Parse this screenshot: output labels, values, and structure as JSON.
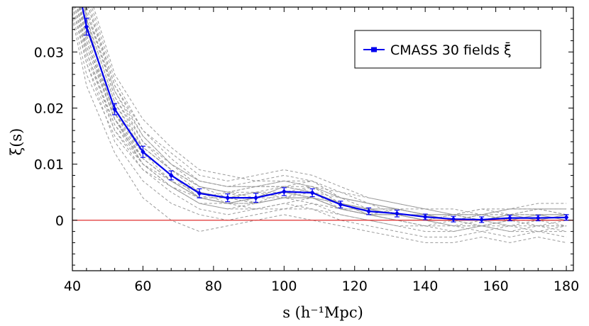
{
  "chart_data": {
    "type": "line",
    "xlabel": "s (h⁻¹Mpc)",
    "ylabel": "ξ(s)",
    "xlim": [
      40,
      182
    ],
    "ylim": [
      -0.009,
      0.038
    ],
    "x_ticks": [
      40,
      60,
      80,
      100,
      120,
      140,
      160,
      180
    ],
    "y_ticks": [
      0,
      0.01,
      0.02,
      0.03
    ],
    "y_tick_labels": [
      "0",
      "0.01",
      "0.02",
      "0.03"
    ],
    "legend_position": "top-right",
    "reference_line": {
      "y": 0,
      "color": "#e03030"
    },
    "mean_series": {
      "name": "CMASS 30 fields ξ̄",
      "color": "#0000ee",
      "x": [
        40,
        44,
        52,
        60,
        68,
        76,
        84,
        92,
        100,
        108,
        116,
        124,
        132,
        140,
        148,
        156,
        164,
        172,
        180
      ],
      "y": [
        0.0465,
        0.0345,
        0.0198,
        0.0122,
        0.008,
        0.0048,
        0.004,
        0.004,
        0.0051,
        0.0049,
        0.0028,
        0.0016,
        0.0012,
        0.0006,
        0.0002,
        0.0001,
        0.0004,
        0.0004,
        0.0005
      ],
      "err": [
        0,
        0.0015,
        0.001,
        0.001,
        0.0008,
        0.0008,
        0.0007,
        0.0008,
        0.0007,
        0.0007,
        0.0006,
        0.0006,
        0.0006,
        0.0005,
        0.0005,
        0.0005,
        0.0005,
        0.0005,
        0.0005
      ]
    },
    "field_series_color": "#9a9a9a",
    "field_series_x": [
      40,
      44,
      52,
      60,
      68,
      76,
      84,
      92,
      100,
      108,
      116,
      124,
      132,
      140,
      148,
      156,
      164,
      172,
      180
    ],
    "field_series": [
      {
        "y": [
          0.05,
          0.038,
          0.022,
          0.014,
          0.01,
          0.006,
          0.005,
          0.004,
          0.006,
          0.005,
          0.003,
          0.002,
          0.001,
          0.0,
          0.0,
          -0.001,
          0.0,
          0.001,
          0.001
        ]
      },
      {
        "y": [
          0.044,
          0.032,
          0.018,
          0.01,
          0.007,
          0.004,
          0.003,
          0.003,
          0.004,
          0.006,
          0.003,
          0.001,
          0.002,
          0.001,
          0.0,
          0.001,
          0.0,
          0.0,
          0.0
        ]
      },
      {
        "y": [
          0.042,
          0.03,
          0.016,
          0.009,
          0.006,
          0.003,
          0.002,
          0.002,
          0.002,
          0.003,
          0.001,
          0.0,
          -0.001,
          -0.001,
          -0.002,
          -0.001,
          -0.002,
          -0.001,
          -0.002
        ]
      },
      {
        "y": [
          0.055,
          0.04,
          0.024,
          0.016,
          0.012,
          0.008,
          0.007,
          0.008,
          0.009,
          0.008,
          0.006,
          0.004,
          0.003,
          0.002,
          0.001,
          0.002,
          0.002,
          0.003,
          0.003
        ]
      },
      {
        "y": [
          0.038,
          0.028,
          0.014,
          0.007,
          0.003,
          0.001,
          0.0,
          0.001,
          0.002,
          0.002,
          0.0,
          -0.001,
          -0.002,
          -0.003,
          -0.003,
          -0.002,
          -0.003,
          -0.002,
          -0.003
        ]
      },
      {
        "y": [
          0.048,
          0.036,
          0.021,
          0.013,
          0.009,
          0.005,
          0.004,
          0.005,
          0.005,
          0.004,
          0.002,
          0.001,
          0.0,
          0.0,
          0.001,
          0.0,
          0.001,
          0.001,
          0.0
        ]
      },
      {
        "y": [
          0.046,
          0.034,
          0.02,
          0.012,
          0.008,
          0.005,
          0.004,
          0.004,
          0.005,
          0.005,
          0.003,
          0.002,
          0.001,
          0.001,
          0.0,
          0.0,
          0.001,
          0.0,
          0.001
        ]
      },
      {
        "y": [
          0.052,
          0.036,
          0.018,
          0.01,
          0.006,
          0.004,
          0.003,
          0.004,
          0.006,
          0.007,
          0.004,
          0.002,
          0.001,
          0.0,
          -0.001,
          -0.001,
          0.0,
          -0.001,
          -0.001
        ]
      },
      {
        "y": [
          0.04,
          0.029,
          0.017,
          0.011,
          0.007,
          0.004,
          0.005,
          0.006,
          0.006,
          0.005,
          0.004,
          0.003,
          0.002,
          0.001,
          0.001,
          0.001,
          0.002,
          0.002,
          0.002
        ]
      },
      {
        "y": [
          0.058,
          0.042,
          0.026,
          0.018,
          0.013,
          0.009,
          0.008,
          0.007,
          0.008,
          0.007,
          0.005,
          0.004,
          0.003,
          0.002,
          0.002,
          0.001,
          0.002,
          0.002,
          0.001
        ]
      },
      {
        "y": [
          0.036,
          0.024,
          0.012,
          0.004,
          0.0,
          -0.002,
          -0.001,
          0.0,
          0.001,
          0.0,
          -0.001,
          -0.002,
          -0.003,
          -0.004,
          -0.004,
          -0.003,
          -0.004,
          -0.003,
          -0.004
        ]
      },
      {
        "y": [
          0.045,
          0.033,
          0.019,
          0.013,
          0.009,
          0.006,
          0.004,
          0.003,
          0.004,
          0.004,
          0.002,
          0.001,
          0.0,
          -0.001,
          0.0,
          0.0,
          -0.001,
          0.0,
          0.0
        ]
      },
      {
        "y": [
          0.049,
          0.037,
          0.023,
          0.015,
          0.01,
          0.007,
          0.006,
          0.006,
          0.007,
          0.006,
          0.004,
          0.003,
          0.002,
          0.001,
          0.001,
          0.002,
          0.001,
          0.002,
          0.002
        ]
      },
      {
        "y": [
          0.041,
          0.031,
          0.018,
          0.011,
          0.007,
          0.004,
          0.003,
          0.002,
          0.003,
          0.004,
          0.002,
          0.001,
          0.001,
          0.0,
          -0.001,
          -0.002,
          -0.001,
          -0.002,
          -0.002
        ]
      },
      {
        "y": [
          0.047,
          0.035,
          0.02,
          0.012,
          0.008,
          0.005,
          0.004,
          0.005,
          0.004,
          0.004,
          0.003,
          0.002,
          0.002,
          0.001,
          0.0,
          0.001,
          0.0,
          0.001,
          0.001
        ]
      },
      {
        "y": [
          0.053,
          0.039,
          0.023,
          0.014,
          0.009,
          0.006,
          0.005,
          0.006,
          0.006,
          0.006,
          0.005,
          0.003,
          0.001,
          0.0,
          0.001,
          0.0,
          0.001,
          0.0,
          0.0
        ]
      },
      {
        "y": [
          0.037,
          0.026,
          0.015,
          0.009,
          0.005,
          0.002,
          0.001,
          0.002,
          0.003,
          0.002,
          0.001,
          0.0,
          -0.001,
          -0.002,
          -0.002,
          -0.001,
          -0.002,
          -0.002,
          -0.001
        ]
      },
      {
        "y": [
          0.043,
          0.032,
          0.019,
          0.013,
          0.009,
          0.006,
          0.005,
          0.003,
          0.005,
          0.006,
          0.003,
          0.001,
          0.002,
          0.001,
          0.001,
          0.0,
          0.001,
          0.001,
          0.001
        ]
      },
      {
        "y": [
          0.05,
          0.036,
          0.021,
          0.012,
          0.008,
          0.004,
          0.003,
          0.004,
          0.005,
          0.004,
          0.002,
          0.002,
          0.001,
          0.0,
          0.0,
          0.0,
          0.0,
          0.0,
          0.0
        ]
      },
      {
        "y": [
          0.039,
          0.028,
          0.016,
          0.01,
          0.006,
          0.003,
          0.002,
          0.003,
          0.004,
          0.003,
          0.002,
          0.001,
          0.0,
          -0.001,
          -0.001,
          -0.001,
          -0.001,
          0.0,
          -0.001
        ]
      },
      {
        "y": [
          0.056,
          0.041,
          0.025,
          0.016,
          0.011,
          0.007,
          0.006,
          0.007,
          0.007,
          0.007,
          0.004,
          0.003,
          0.002,
          0.002,
          0.001,
          0.001,
          0.002,
          0.002,
          0.002
        ]
      },
      {
        "y": [
          0.044,
          0.033,
          0.019,
          0.011,
          0.007,
          0.005,
          0.004,
          0.004,
          0.005,
          0.005,
          0.003,
          0.002,
          0.001,
          0.0,
          0.0,
          0.0,
          0.0,
          0.001,
          0.0
        ]
      },
      {
        "y": [
          0.047,
          0.034,
          0.02,
          0.012,
          0.008,
          0.005,
          0.003,
          0.004,
          0.005,
          0.004,
          0.003,
          0.001,
          0.001,
          0.001,
          0.0,
          0.001,
          0.0,
          0.0,
          0.001
        ]
      },
      {
        "y": [
          0.042,
          0.031,
          0.018,
          0.012,
          0.008,
          0.004,
          0.004,
          0.003,
          0.004,
          0.005,
          0.002,
          0.001,
          0.0,
          0.0,
          -0.001,
          0.0,
          -0.001,
          -0.001,
          0.0
        ]
      },
      {
        "y": [
          0.051,
          0.037,
          0.022,
          0.013,
          0.009,
          0.006,
          0.005,
          0.005,
          0.006,
          0.005,
          0.003,
          0.002,
          0.002,
          0.001,
          0.001,
          0.001,
          0.001,
          0.001,
          0.001
        ]
      },
      {
        "y": [
          0.045,
          0.033,
          0.019,
          0.012,
          0.007,
          0.004,
          0.004,
          0.004,
          0.005,
          0.004,
          0.002,
          0.002,
          0.001,
          0.0,
          0.0,
          0.0,
          0.0,
          0.0,
          0.0
        ]
      },
      {
        "y": [
          0.04,
          0.03,
          0.017,
          0.01,
          0.006,
          0.003,
          0.003,
          0.003,
          0.004,
          0.004,
          0.002,
          0.001,
          0.001,
          0.0,
          0.0,
          -0.001,
          0.0,
          -0.001,
          -0.001
        ]
      },
      {
        "y": [
          0.054,
          0.039,
          0.024,
          0.015,
          0.01,
          0.007,
          0.006,
          0.006,
          0.007,
          0.006,
          0.004,
          0.003,
          0.002,
          0.001,
          0.001,
          0.001,
          0.001,
          0.002,
          0.001
        ]
      },
      {
        "y": [
          0.046,
          0.034,
          0.02,
          0.012,
          0.008,
          0.005,
          0.004,
          0.004,
          0.005,
          0.005,
          0.003,
          0.001,
          0.001,
          0.001,
          0.0,
          0.0,
          0.001,
          0.0,
          0.0
        ]
      },
      {
        "y": [
          0.043,
          0.032,
          0.018,
          0.011,
          0.007,
          0.004,
          0.003,
          0.004,
          0.004,
          0.004,
          0.002,
          0.001,
          0.001,
          0.0,
          0.0,
          0.0,
          0.0,
          0.0,
          0.0
        ]
      }
    ]
  }
}
